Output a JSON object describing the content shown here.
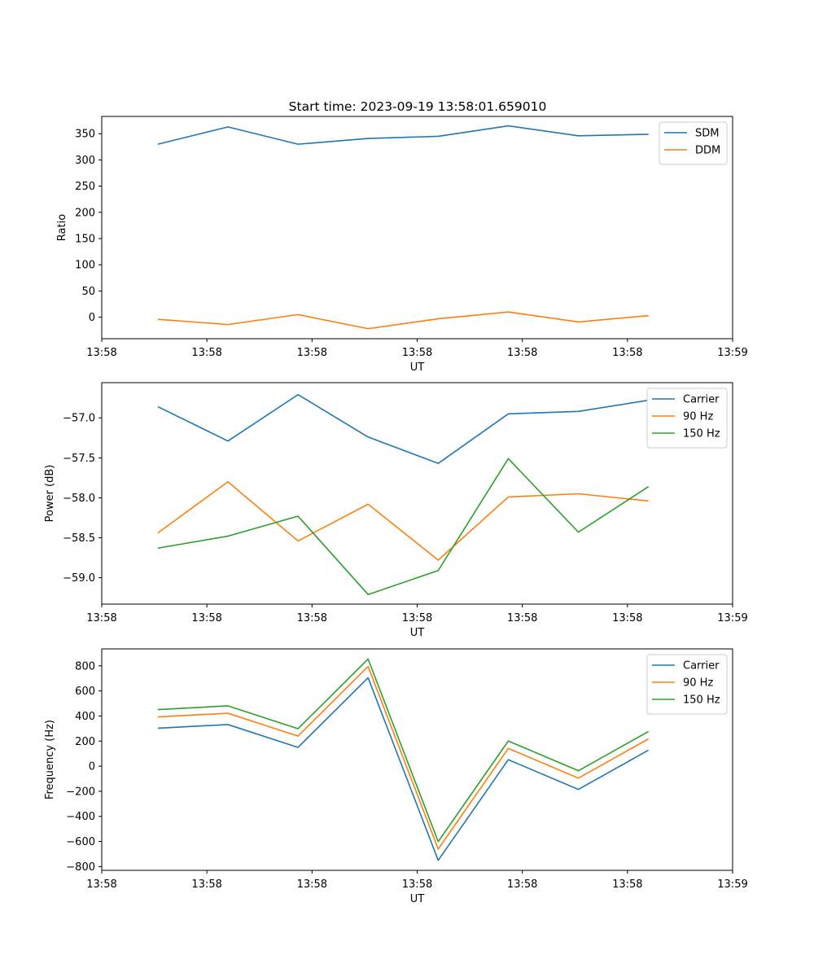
{
  "figure": {
    "title": "Start time: 2023-09-19 13:58:01.659010"
  },
  "colors": {
    "blue": "#1f77b4",
    "orange": "#ff7f0e",
    "green": "#2ca02c",
    "axis": "#000000",
    "legend_border": "#cccccc"
  },
  "chart_data": [
    {
      "type": "line",
      "name": "ratio",
      "title": "Start time: 2023-09-19 13:58:01.659010",
      "xlabel": "UT",
      "ylabel": "Ratio",
      "x": [
        1,
        2,
        3,
        4,
        5,
        6,
        7,
        8
      ],
      "xlim": [
        0.2,
        9.2
      ],
      "x_ticks": [
        0.2,
        1.7,
        3.2,
        4.7,
        6.2,
        7.7,
        9.2
      ],
      "x_tick_labels": [
        "13:58",
        "13:58",
        "13:58",
        "13:58",
        "13:58",
        "13:58",
        "13:59"
      ],
      "ylim": [
        -41,
        383
      ],
      "y_ticks": [
        0,
        50,
        100,
        150,
        200,
        250,
        300,
        350
      ],
      "y_tick_labels": [
        "0",
        "50",
        "100",
        "150",
        "200",
        "250",
        "300",
        "350"
      ],
      "legend": "top-right",
      "series": [
        {
          "name": "SDM",
          "color": "#1f77b4",
          "values": [
            330,
            363,
            330,
            341,
            345,
            365,
            346,
            349
          ]
        },
        {
          "name": "DDM",
          "color": "#ff7f0e",
          "values": [
            -4,
            -14,
            5,
            -22,
            -3,
            10,
            -9,
            3
          ]
        }
      ]
    },
    {
      "type": "line",
      "name": "power",
      "title": "",
      "xlabel": "UT",
      "ylabel": "Power (dB)",
      "x": [
        1,
        2,
        3,
        4,
        5,
        6,
        7,
        8
      ],
      "xlim": [
        0.2,
        9.2
      ],
      "x_ticks": [
        0.2,
        1.7,
        3.2,
        4.7,
        6.2,
        7.7,
        9.2
      ],
      "x_tick_labels": [
        "13:58",
        "13:58",
        "13:58",
        "13:58",
        "13:58",
        "13:58",
        "13:59"
      ],
      "ylim": [
        -59.33,
        -56.56
      ],
      "y_ticks": [
        -59.0,
        -58.5,
        -58.0,
        -57.5,
        -57.0
      ],
      "y_tick_labels": [
        "−59.0",
        "−58.5",
        "−58.0",
        "−57.5",
        "−57.0"
      ],
      "legend": "top-right",
      "series": [
        {
          "name": "Carrier",
          "color": "#1f77b4",
          "values": [
            -56.86,
            -57.29,
            -56.71,
            -57.24,
            -57.57,
            -56.95,
            -56.92,
            -56.78
          ]
        },
        {
          "name": "90 Hz",
          "color": "#ff7f0e",
          "values": [
            -58.44,
            -57.8,
            -58.54,
            -58.08,
            -58.78,
            -57.99,
            -57.95,
            -58.04
          ]
        },
        {
          "name": "150 Hz",
          "color": "#2ca02c",
          "values": [
            -58.63,
            -58.48,
            -58.23,
            -59.21,
            -58.91,
            -57.51,
            -58.43,
            -57.86
          ]
        }
      ]
    },
    {
      "type": "line",
      "name": "frequency",
      "title": "",
      "xlabel": "UT",
      "ylabel": "Frequency (Hz)",
      "x": [
        1,
        2,
        3,
        4,
        5,
        6,
        7,
        8
      ],
      "xlim": [
        0.2,
        9.2
      ],
      "x_ticks": [
        0.2,
        1.7,
        3.2,
        4.7,
        6.2,
        7.7,
        9.2
      ],
      "x_tick_labels": [
        "13:58",
        "13:58",
        "13:58",
        "13:58",
        "13:58",
        "13:58",
        "13:59"
      ],
      "ylim": [
        -830,
        935
      ],
      "y_ticks": [
        -800,
        -600,
        -400,
        -200,
        0,
        200,
        400,
        600,
        800
      ],
      "y_tick_labels": [
        "−800",
        "−600",
        "−400",
        "−200",
        "0",
        "200",
        "400",
        "600",
        "800"
      ],
      "legend": "top-right",
      "series": [
        {
          "name": "Carrier",
          "color": "#1f77b4",
          "values": [
            303,
            332,
            150,
            705,
            -750,
            52,
            -185,
            128
          ]
        },
        {
          "name": "90 Hz",
          "color": "#ff7f0e",
          "values": [
            393,
            422,
            240,
            795,
            -660,
            142,
            -95,
            218
          ]
        },
        {
          "name": "150 Hz",
          "color": "#2ca02c",
          "values": [
            451,
            481,
            299,
            854,
            -601,
            201,
            -36,
            277
          ]
        }
      ]
    }
  ]
}
